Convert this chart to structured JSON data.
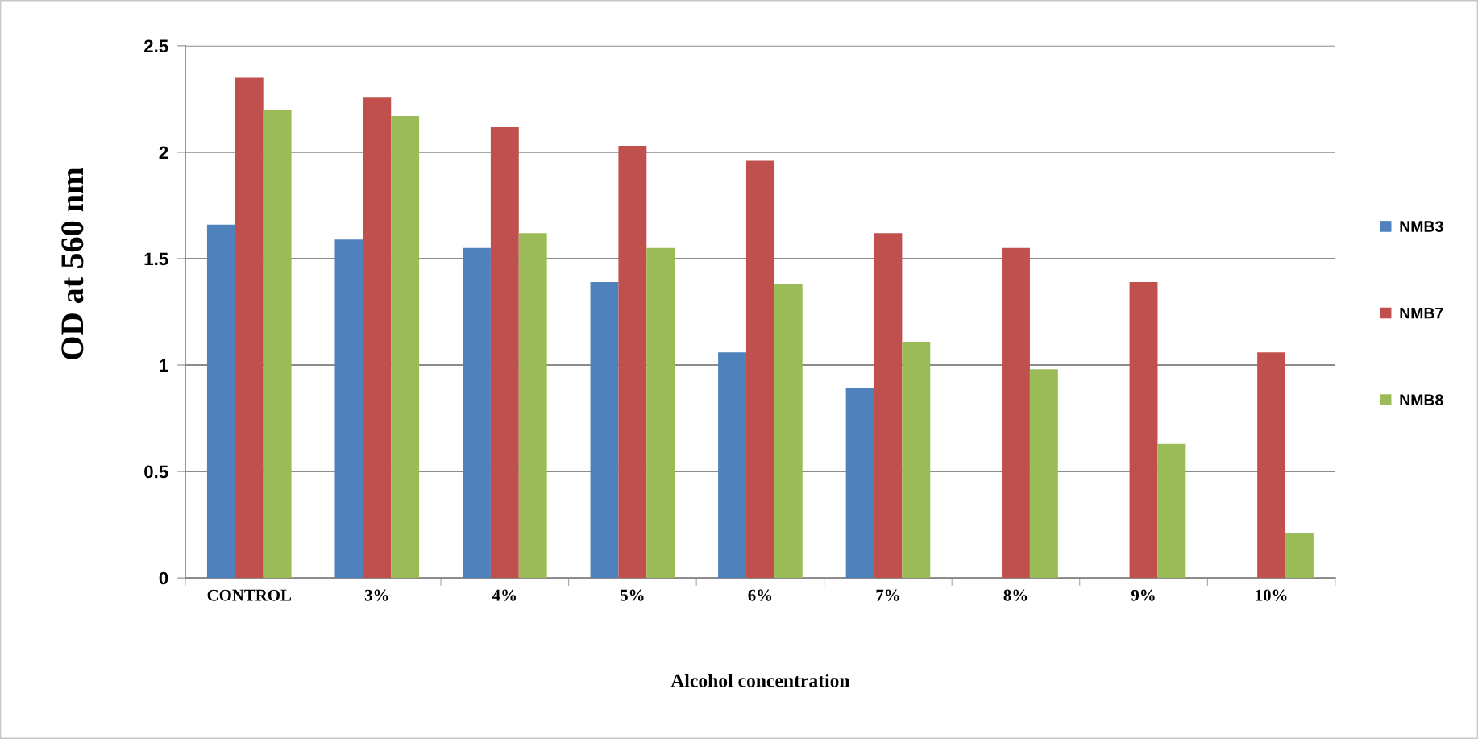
{
  "chart_data": {
    "type": "bar",
    "xlabel": "Alcohol concentration",
    "ylabel": "OD at 560 nm",
    "categories": [
      "CONTROL",
      "3%",
      "4%",
      "5%",
      "6%",
      "7%",
      "8%",
      "9%",
      "10%"
    ],
    "series": [
      {
        "name": "NMB3",
        "color": "#4f81bd",
        "values": [
          1.66,
          1.59,
          1.55,
          1.39,
          1.06,
          0.89,
          null,
          null,
          null
        ]
      },
      {
        "name": "NMB7",
        "color": "#c0504d",
        "values": [
          2.35,
          2.26,
          2.12,
          2.03,
          1.96,
          1.62,
          1.55,
          1.39,
          1.06
        ]
      },
      {
        "name": "NMB8",
        "color": "#9bbb59",
        "values": [
          2.2,
          2.17,
          1.62,
          1.55,
          1.38,
          1.11,
          0.98,
          0.63,
          0.21
        ]
      }
    ],
    "ylim": [
      0,
      2.5
    ],
    "yticks": [
      0,
      0.5,
      1,
      1.5,
      2,
      2.5
    ],
    "grid": "y",
    "legend": "right"
  }
}
